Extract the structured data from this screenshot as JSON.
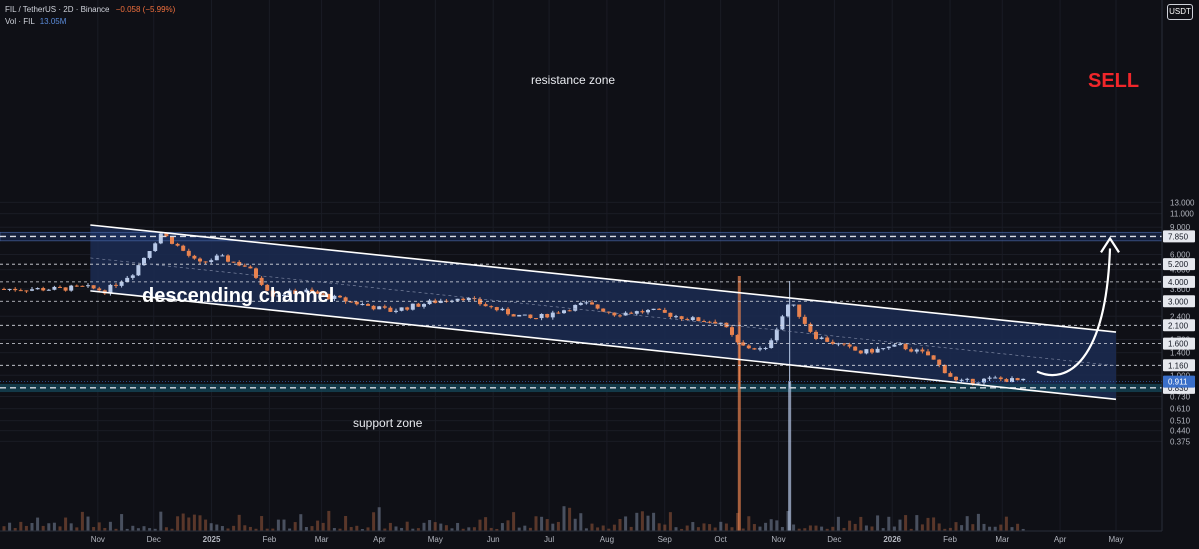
{
  "header": {
    "symbol_line": "FIL / TetherUS · 2D · Binance",
    "change": "−0.058 (−5.99%)",
    "volume_label": "Vol · FIL",
    "volume_value": "13.05M"
  },
  "price_axis": {
    "currency_button": "USDT",
    "ticks": [
      "13.000",
      "11.000",
      "9.000",
      "6.000",
      "4.800",
      "3.600",
      "2.400",
      "1.700",
      "1.400",
      "1.000",
      "0.730",
      "0.610",
      "0.510",
      "0.440",
      "0.375"
    ],
    "level_labels": [
      "7.850",
      "5.200",
      "4.000",
      "3.000",
      "2.100",
      "1.600",
      "1.160",
      "0.830"
    ],
    "current_price_label": "0.911"
  },
  "time_axis": {
    "ticks": [
      "Nov",
      "Dec",
      "2025",
      "Feb",
      "Mar",
      "Apr",
      "May",
      "Jun",
      "Jul",
      "Aug",
      "Sep",
      "Oct",
      "Nov",
      "Dec",
      "2026",
      "Feb",
      "Mar",
      "Apr",
      "May"
    ]
  },
  "annotations": {
    "resistance": "resistance zone",
    "support": "support zone",
    "channel": "descending channel",
    "signal": "SELL"
  },
  "colors": {
    "background": "#0f1016",
    "up_candle": "#b8c9e8",
    "down_candle": "#e8824f",
    "channel_fill": "#1b2b52",
    "support_fill": "#16475a",
    "signal": "#f0262a",
    "current_price": "#3a6fc9"
  },
  "chart_data": {
    "type": "candlestick",
    "symbol": "FIL/USDT",
    "interval": "2D",
    "exchange": "Binance",
    "price_scale": "log",
    "ylim": [
      0.34,
      15.5
    ],
    "price_series": [
      {
        "date": "2024-10-10",
        "price": 3.6
      },
      {
        "date": "2024-10-25",
        "price": 3.7
      },
      {
        "date": "2024-11-05",
        "price": 3.5
      },
      {
        "date": "2024-11-20",
        "price": 4.6
      },
      {
        "date": "2024-12-05",
        "price": 8.3
      },
      {
        "date": "2024-12-15",
        "price": 6.6
      },
      {
        "date": "2024-12-25",
        "price": 5.2
      },
      {
        "date": "2025-01-05",
        "price": 5.8
      },
      {
        "date": "2025-01-20",
        "price": 5.0
      },
      {
        "date": "2025-02-03",
        "price": 3.3
      },
      {
        "date": "2025-02-20",
        "price": 3.5
      },
      {
        "date": "2025-03-10",
        "price": 3.1
      },
      {
        "date": "2025-04-07",
        "price": 2.6
      },
      {
        "date": "2025-04-25",
        "price": 2.9
      },
      {
        "date": "2025-05-15",
        "price": 3.2
      },
      {
        "date": "2025-06-05",
        "price": 2.6
      },
      {
        "date": "2025-06-22",
        "price": 2.3
      },
      {
        "date": "2025-07-20",
        "price": 2.9
      },
      {
        "date": "2025-08-05",
        "price": 2.5
      },
      {
        "date": "2025-08-25",
        "price": 2.6
      },
      {
        "date": "2025-09-15",
        "price": 2.3
      },
      {
        "date": "2025-10-01",
        "price": 2.2
      },
      {
        "date": "2025-10-11",
        "price": 1.55
      },
      {
        "date": "2025-10-25",
        "price": 1.45
      },
      {
        "date": "2025-11-07",
        "price": 3.0
      },
      {
        "date": "2025-11-20",
        "price": 1.8
      },
      {
        "date": "2025-12-15",
        "price": 1.4
      },
      {
        "date": "2026-01-05",
        "price": 1.55
      },
      {
        "date": "2026-01-20",
        "price": 1.35
      },
      {
        "date": "2026-02-05",
        "price": 0.9
      },
      {
        "date": "2026-02-25",
        "price": 0.95
      },
      {
        "date": "2026-03-15",
        "price": 0.91
      }
    ],
    "levels": [
      7.85,
      5.2,
      4.0,
      3.0,
      2.1,
      1.6,
      1.16,
      0.83
    ],
    "current_price": 0.911,
    "resistance_zone": [
      7.35,
      8.35
    ],
    "support_zone": [
      0.78,
      0.88
    ],
    "channel": {
      "upper": [
        {
          "date": "2024-10-28",
          "price": 9.3
        },
        {
          "date": "2026-05-01",
          "price": 1.9
        }
      ],
      "lower": [
        {
          "date": "2024-10-28",
          "price": 3.5
        },
        {
          "date": "2026-05-01",
          "price": 0.7
        }
      ]
    },
    "projection": [
      {
        "date": "2026-03-25",
        "price": 0.86
      },
      {
        "date": "2026-05-01",
        "price": 7.4
      }
    ]
  }
}
